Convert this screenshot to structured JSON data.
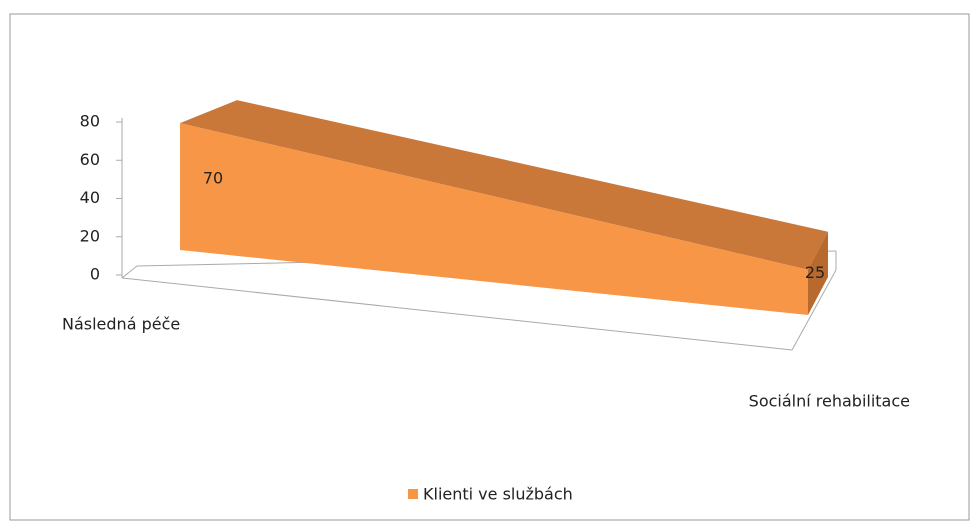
{
  "chart_data": {
    "type": "area3d",
    "categories": [
      "Následná péče",
      "Sociální rehabilitace"
    ],
    "series": [
      {
        "name": "Klienti ve službách",
        "color": "#f79646",
        "values": [
          70,
          25
        ]
      }
    ],
    "ylim": [
      0,
      80
    ],
    "yticks": [
      0,
      20,
      40,
      60,
      80
    ],
    "legend": "bottom"
  }
}
